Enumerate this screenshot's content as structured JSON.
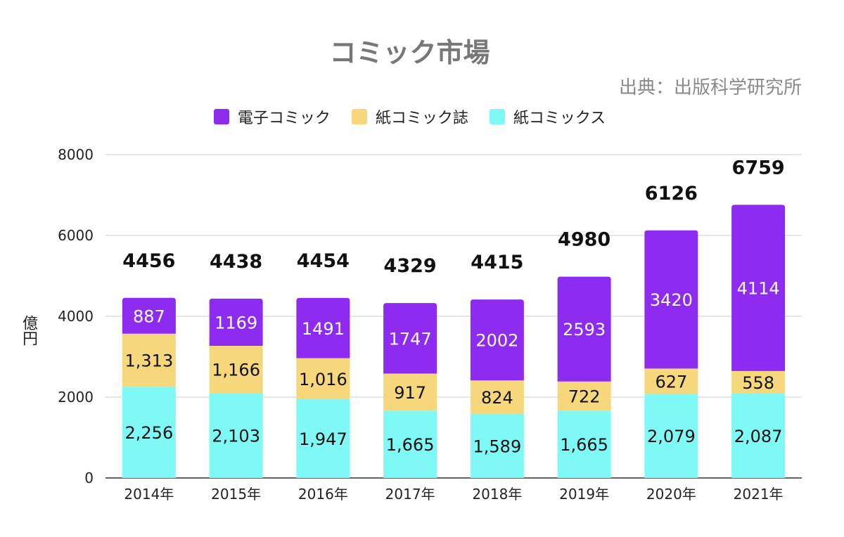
{
  "chart_data": {
    "type": "bar",
    "stacked": true,
    "title": "コミック市場",
    "source": "出典：出版科学研究所",
    "ylabel": "億円",
    "ylim": [
      0,
      8000
    ],
    "yticks": [
      "0",
      "2000",
      "4000",
      "6000",
      "8000"
    ],
    "grid": true,
    "legend_position": "top",
    "categories": [
      "2014年",
      "2015年",
      "2016年",
      "2017年",
      "2018年",
      "2019年",
      "2020年",
      "2021年"
    ],
    "series": [
      {
        "name": "紙コミックス",
        "color": "#7ef9f6",
        "values": [
          2256,
          2103,
          1947,
          1665,
          1589,
          1665,
          2079,
          2087
        ],
        "labels": [
          "2,256",
          "2,103",
          "1,947",
          "1,665",
          "1,589",
          "1,665",
          "2,079",
          "2,087"
        ],
        "label_color": "#111111"
      },
      {
        "name": "紙コミック誌",
        "color": "#f6d77c",
        "values": [
          1313,
          1166,
          1016,
          917,
          824,
          722,
          627,
          558
        ],
        "labels": [
          "1,313",
          "1,166",
          "1,016",
          "917",
          "824",
          "722",
          "627",
          "558"
        ],
        "label_color": "#111111"
      },
      {
        "name": "電子コミック",
        "color": "#8d2cf0",
        "values": [
          887,
          1169,
          1491,
          1747,
          2002,
          2593,
          3420,
          4114
        ],
        "labels": [
          "887",
          "1169",
          "1491",
          "1747",
          "2002",
          "2593",
          "3420",
          "4114"
        ],
        "label_color": "#ffffff"
      }
    ],
    "legend_order": [
      2,
      1,
      0
    ],
    "totals": [
      "4456",
      "4438",
      "4454",
      "4329",
      "4415",
      "4980",
      "6126",
      "6759"
    ]
  }
}
